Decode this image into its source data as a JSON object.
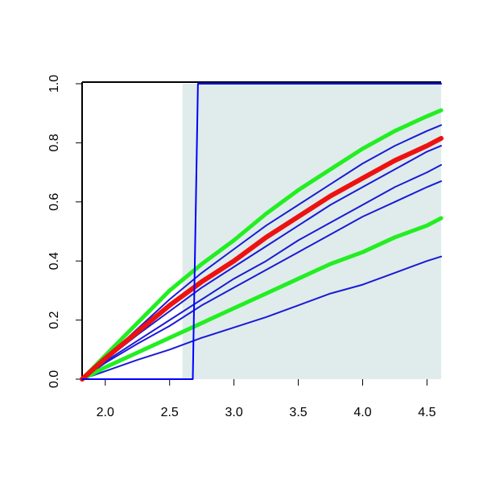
{
  "chart_data": {
    "type": "line",
    "xlim": [
      1.82,
      4.61
    ],
    "ylim": [
      0,
      1
    ],
    "xticks": [
      {
        "value": 2,
        "label": "2.0"
      },
      2.5,
      {
        "value": 3,
        "label": "3.0"
      },
      3.5,
      {
        "value": 4,
        "label": "4.0"
      },
      4.5
    ],
    "yticks": [
      {
        "value": 0,
        "label": "0.0"
      },
      0.2,
      0.4,
      0.6,
      0.8,
      {
        "value": 1,
        "label": "1.0"
      }
    ],
    "shaded_region": {
      "x_start": 2.6,
      "color": "#dfeceb"
    },
    "x": [
      1.82,
      2.0,
      2.25,
      2.5,
      2.75,
      3.0,
      3.25,
      3.5,
      3.75,
      4.0,
      4.25,
      4.5,
      4.61
    ],
    "series": [
      {
        "color": "#1a1ad6",
        "linewidth": 2,
        "values": [
          0,
          0.027,
          0.065,
          0.1,
          0.14,
          0.175,
          0.21,
          0.25,
          0.29,
          0.32,
          0.36,
          0.4,
          0.415
        ]
      },
      {
        "color": "#1a1ad6",
        "linewidth": 2,
        "values": [
          0,
          0.055,
          0.12,
          0.18,
          0.25,
          0.31,
          0.37,
          0.43,
          0.49,
          0.55,
          0.6,
          0.65,
          0.67
        ]
      },
      {
        "color": "#1a1ad6",
        "linewidth": 2,
        "values": [
          0,
          0.06,
          0.13,
          0.2,
          0.27,
          0.34,
          0.4,
          0.47,
          0.53,
          0.59,
          0.65,
          0.7,
          0.725
        ]
      },
      {
        "color": "#1a1ad6",
        "linewidth": 2,
        "values": [
          0,
          0.065,
          0.15,
          0.23,
          0.31,
          0.38,
          0.45,
          0.52,
          0.59,
          0.65,
          0.71,
          0.77,
          0.79
        ]
      },
      {
        "color": "#1a1ad6",
        "linewidth": 2,
        "values": [
          0,
          0.07,
          0.17,
          0.27,
          0.36,
          0.44,
          0.52,
          0.59,
          0.66,
          0.73,
          0.79,
          0.84,
          0.86
        ]
      },
      {
        "color": "#22ee22",
        "linewidth": 5,
        "values": [
          0,
          0.04,
          0.09,
          0.14,
          0.19,
          0.24,
          0.29,
          0.34,
          0.39,
          0.43,
          0.48,
          0.52,
          0.545
        ]
      },
      {
        "color": "#22ee22",
        "linewidth": 5,
        "values": [
          0,
          0.08,
          0.19,
          0.3,
          0.39,
          0.47,
          0.56,
          0.64,
          0.71,
          0.78,
          0.84,
          0.89,
          0.91
        ]
      },
      {
        "color": "#ee1111",
        "linewidth": 6,
        "values": [
          0,
          0.07,
          0.16,
          0.25,
          0.33,
          0.4,
          0.48,
          0.55,
          0.62,
          0.68,
          0.74,
          0.79,
          0.815
        ]
      },
      {
        "color": "#0000ff",
        "linewidth": 2,
        "x": [
          1.82,
          2.68,
          2.7,
          2.72,
          4.61
        ],
        "values": [
          0,
          0,
          0.5,
          1,
          1
        ]
      }
    ]
  }
}
